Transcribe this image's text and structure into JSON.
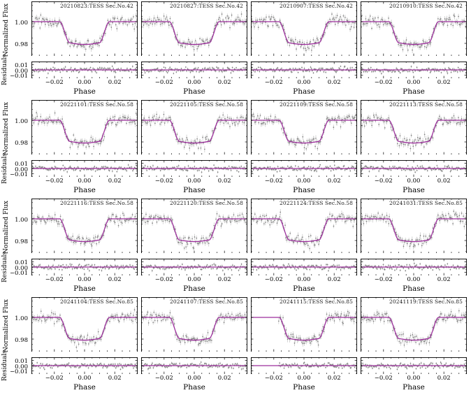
{
  "figure": {
    "background": "#ffffff",
    "colors": {
      "model_line": "#9c2f9c",
      "data_point": "#7e7e7e",
      "error_bar": "#c3c3c3",
      "axis_frame": "#000000",
      "text": "#000000"
    }
  },
  "axes": {
    "xlabel": "Phase",
    "main_ylabel": "Normalized Flux",
    "resid_ylabel": "Residuals",
    "xtick_labels": [
      "−0.02",
      "0.00",
      "0.02"
    ],
    "xtick_values": [
      -0.02,
      0.0,
      0.02
    ],
    "main_ytick_labels": [
      "1.00",
      "0.98"
    ],
    "main_ytick_values": [
      1.0,
      0.98
    ],
    "resid_ytick_labels": [
      "0.01",
      "0.00",
      "−0.01"
    ],
    "resid_ytick_values": [
      0.01,
      0.0,
      -0.01
    ]
  },
  "chart_data": {
    "type": "scatter",
    "subtype": "transit-light-curves-with-residuals",
    "grid": {
      "rows": 4,
      "cols": 4
    },
    "xlabel": "Phase",
    "ylabel_main": "Normalized Flux",
    "ylabel_resid": "Residuals",
    "xlim": [
      -0.0352,
      0.0352
    ],
    "ylim_main": [
      0.9684,
      1.0187
    ],
    "ylim_resid": [
      -0.016,
      0.016
    ],
    "xticks": [
      -0.02,
      0.0,
      0.02
    ],
    "xticks_minor_step": 0.005,
    "yticks_main": [
      1.0,
      0.98
    ],
    "yticks_resid": [
      0.01,
      0.0,
      -0.01
    ],
    "grid_lines": false,
    "legend": "none",
    "model": {
      "baseline_flux": 1.0,
      "transit_depth": 0.0195,
      "bottom_rounding": 0.0015,
      "ingress_start_phase": -0.0165,
      "flat_start_phase": -0.0098,
      "flat_end_phase": 0.0098,
      "egress_end_phase": 0.0165,
      "min_flux_at_center": 0.979,
      "residual_model_value": 0.0
    },
    "scatter": {
      "n_points_per_panel": 120,
      "flux_noise_sigma": 0.0025,
      "errorbar_half_length": 0.0024
    },
    "panels": [
      {
        "title": "20210823:TESS Sec.No.42",
        "date": "20210823",
        "tess_sector": "42",
        "data_phase_min": -0.0349
      },
      {
        "title": "20210827:TESS Sec.No.42",
        "date": "20210827",
        "tess_sector": "42",
        "data_phase_min": -0.0349
      },
      {
        "title": "20210907:TESS Sec.No.42",
        "date": "20210907",
        "tess_sector": "42",
        "data_phase_min": -0.0349
      },
      {
        "title": "20210910:TESS Sec.No.42",
        "date": "20210910",
        "tess_sector": "42",
        "data_phase_min": -0.0349
      },
      {
        "title": "20221101:TESS Sec.No.58",
        "date": "20221101",
        "tess_sector": "58",
        "data_phase_min": -0.0349
      },
      {
        "title": "20221105:TESS Sec.No.58",
        "date": "20221105",
        "tess_sector": "58",
        "data_phase_min": -0.0349
      },
      {
        "title": "20221109:TESS Sec.No.58",
        "date": "20221109",
        "tess_sector": "58",
        "data_phase_min": -0.0349
      },
      {
        "title": "20221113:TESS Sec.No.58",
        "date": "20221113",
        "tess_sector": "58",
        "data_phase_min": -0.0349
      },
      {
        "title": "20221116:TESS Sec.No.58",
        "date": "20221116",
        "tess_sector": "58",
        "data_phase_min": -0.0349
      },
      {
        "title": "20221120:TESS Sec.No.58",
        "date": "20221120",
        "tess_sector": "58",
        "data_phase_min": -0.0349
      },
      {
        "title": "20221124:TESS Sec.No.58",
        "date": "20221124",
        "tess_sector": "58",
        "data_phase_min": -0.0349
      },
      {
        "title": "20241031:TESS Sec.No.85",
        "date": "20241031",
        "tess_sector": "85",
        "data_phase_min": -0.0349
      },
      {
        "title": "20241104:TESS Sec.No.85",
        "date": "20241104",
        "tess_sector": "85",
        "data_phase_min": -0.0349
      },
      {
        "title": "20241107:TESS Sec.No.85",
        "date": "20241107",
        "tess_sector": "85",
        "data_phase_min": -0.0349
      },
      {
        "title": "20241115:TESS Sec.No.85",
        "date": "20241115",
        "tess_sector": "85",
        "data_phase_min": -0.0168,
        "note": "no data before phase -0.017; model line only"
      },
      {
        "title": "20241119:TESS Sec.No.85",
        "date": "20241119",
        "tess_sector": "85",
        "data_phase_min": -0.0349
      }
    ]
  }
}
